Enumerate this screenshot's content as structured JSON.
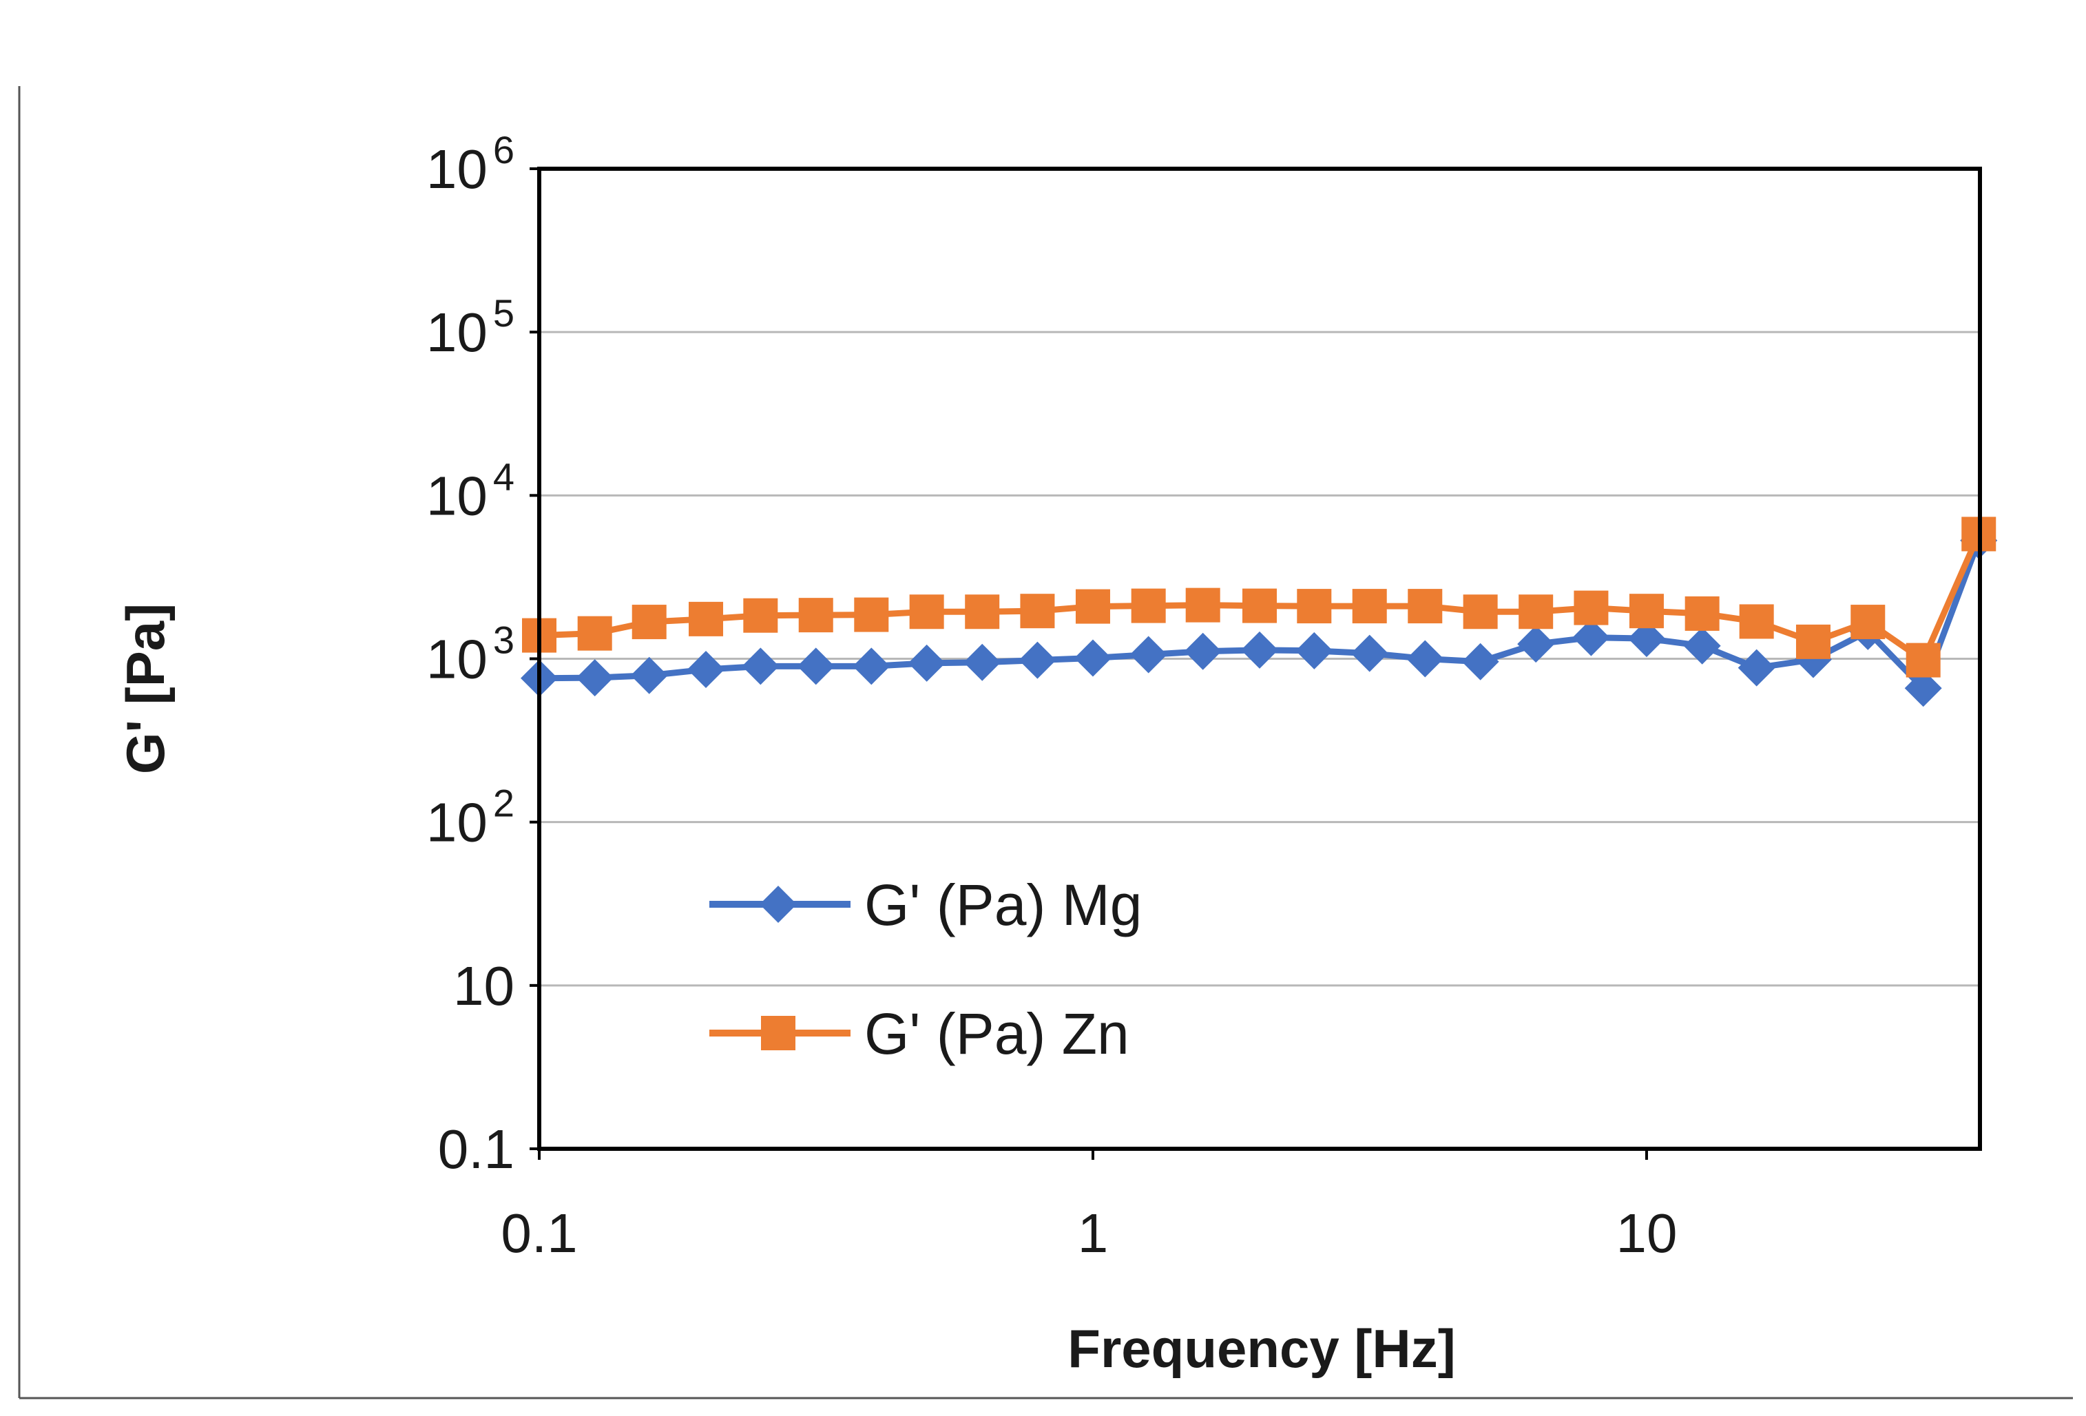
{
  "chart_data": {
    "type": "line",
    "xscale": "log",
    "yscale": "log",
    "xlabel": "Frequency [Hz]",
    "ylabel": "G' [Pa]",
    "xlim": [
      0.1,
      40
    ],
    "ylim": [
      0.1,
      1000000
    ],
    "x_ticks": [
      {
        "value": 0.1,
        "label": "0.1"
      },
      {
        "value": 1,
        "label": "1"
      },
      {
        "value": 10,
        "label": "10"
      }
    ],
    "y_ticks": [
      {
        "value": 0.1,
        "base": "0.1",
        "exp": ""
      },
      {
        "value": 10,
        "base": "10",
        "exp": ""
      },
      {
        "value": 100,
        "base": "10",
        "exp": "2"
      },
      {
        "value": 1000,
        "base": "10",
        "exp": "3"
      },
      {
        "value": 10000,
        "base": "10",
        "exp": "4"
      },
      {
        "value": 100000,
        "base": "10",
        "exp": "5"
      },
      {
        "value": 1000000,
        "base": "10",
        "exp": "6"
      }
    ],
    "grid": true,
    "legend_position": "lower-left",
    "series": [
      {
        "name": "G' (Pa) Mg",
        "color": "#4472C4",
        "marker": "diamond",
        "x": [
          0.1,
          0.126,
          0.158,
          0.2,
          0.251,
          0.316,
          0.398,
          0.501,
          0.631,
          0.794,
          1,
          1.26,
          1.58,
          2,
          2.51,
          3.16,
          3.98,
          5.01,
          6.31,
          7.94,
          10,
          12.6,
          15.8,
          20,
          25.1,
          31.6,
          39.8
        ],
        "values": [
          760,
          765,
          790,
          860,
          900,
          900,
          900,
          940,
          950,
          980,
          1010,
          1060,
          1110,
          1130,
          1120,
          1080,
          1000,
          960,
          1230,
          1350,
          1330,
          1200,
          880,
          990,
          1470,
          660,
          5300
        ]
      },
      {
        "name": "G' (Pa) Zn",
        "color": "#ED7D31",
        "marker": "square",
        "x": [
          0.1,
          0.126,
          0.158,
          0.2,
          0.251,
          0.316,
          0.398,
          0.501,
          0.631,
          0.794,
          1,
          1.26,
          1.58,
          2,
          2.51,
          3.16,
          3.98,
          5.01,
          6.31,
          7.94,
          10,
          12.6,
          15.8,
          20,
          25.1,
          31.6,
          39.8
        ],
        "values": [
          1390,
          1430,
          1680,
          1750,
          1840,
          1850,
          1860,
          1940,
          1940,
          1960,
          2090,
          2110,
          2130,
          2110,
          2100,
          2100,
          2100,
          1940,
          1940,
          2050,
          1960,
          1890,
          1690,
          1270,
          1680,
          980,
          5800
        ]
      }
    ]
  }
}
